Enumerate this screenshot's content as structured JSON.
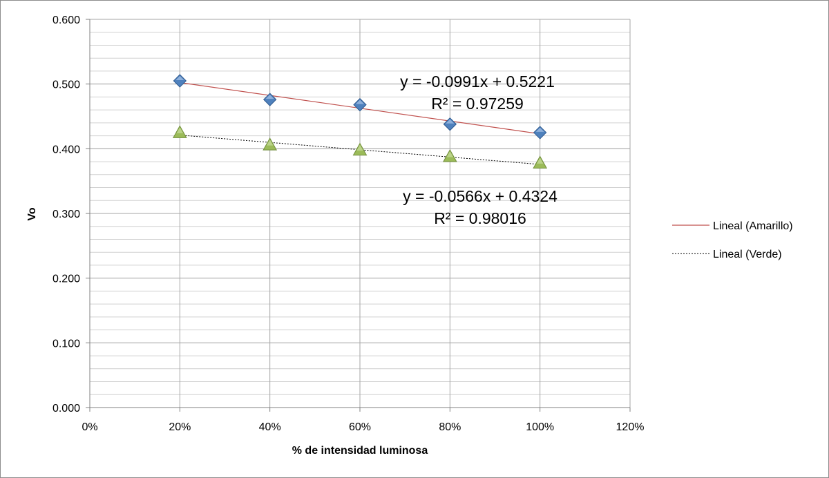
{
  "chart_data": {
    "type": "scatter",
    "xlabel": "% de intensidad luminosa",
    "ylabel": "Vo",
    "xlim": [
      0,
      1.2
    ],
    "ylim": [
      0,
      0.6
    ],
    "x_ticks": [
      0,
      0.2,
      0.4,
      0.6,
      0.8,
      1.0,
      1.2
    ],
    "x_tick_labels": [
      "0%",
      "20%",
      "40%",
      "60%",
      "80%",
      "100%",
      "120%"
    ],
    "y_ticks": [
      0,
      0.1,
      0.2,
      0.3,
      0.4,
      0.5,
      0.6
    ],
    "y_tick_labels": [
      "0.000",
      "0.100",
      "0.200",
      "0.300",
      "0.400",
      "0.500",
      "0.600"
    ],
    "grid": true,
    "minor_grid_step": 0.02,
    "legend_position": "right",
    "series": [
      {
        "marker": "diamond",
        "color": "#4f81bd",
        "x": [
          0.2,
          0.4,
          0.6,
          0.8,
          1.0
        ],
        "y": [
          0.505,
          0.476,
          0.468,
          0.438,
          0.425
        ],
        "trendline": {
          "name": "Lineal (Amarillo)",
          "slope": -0.0991,
          "intercept": 0.5221,
          "color": "#c0504d",
          "style": "solid",
          "equation": "y = -0.0991x + 0.5221",
          "r2": "R² = 0.97259"
        }
      },
      {
        "marker": "triangle",
        "color": "#9bbb59",
        "x": [
          0.2,
          0.4,
          0.6,
          0.8,
          1.0
        ],
        "y": [
          0.424,
          0.405,
          0.397,
          0.387,
          0.377
        ],
        "trendline": {
          "name": "Lineal (Verde)",
          "slope": -0.0566,
          "intercept": 0.4324,
          "color": "#000000",
          "style": "dotted",
          "equation": "y = -0.0566x + 0.4324",
          "r2": "R² = 0.98016"
        }
      }
    ]
  }
}
